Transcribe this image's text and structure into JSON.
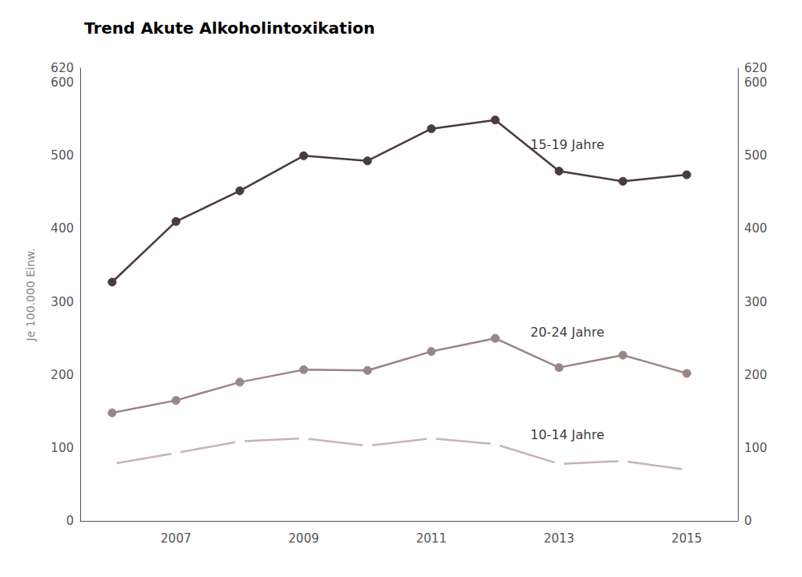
{
  "chart_data": {
    "type": "line",
    "title": "Trend Akute Alkoholintoxikation",
    "ylabel": "Je 100.000 Einw.",
    "x": [
      2006,
      2007,
      2008,
      2009,
      2010,
      2011,
      2012,
      2013,
      2014,
      2015
    ],
    "series": [
      {
        "color": "#4a3c3c",
        "marker": "circle",
        "values": [
          327,
          410,
          452,
          500,
          493,
          537,
          549,
          479,
          465,
          474
        ]
      },
      {
        "color": "#9b8585",
        "marker": "circle",
        "values": [
          148,
          165,
          190,
          207,
          206,
          232,
          250,
          210,
          227,
          202
        ]
      },
      {
        "color": "#c8b4b4",
        "marker": "emptyCircle",
        "values": [
          78,
          93,
          109,
          113,
          103,
          113,
          105,
          78,
          82,
          70
        ]
      }
    ],
    "annotations": [
      {
        "text": "15-19 Jahre",
        "x": 2012.55,
        "y": 515
      },
      {
        "text": "20-24 Jahre",
        "x": 2012.55,
        "y": 258
      },
      {
        "text": "10-14 Jahre",
        "x": 2012.55,
        "y": 118
      }
    ],
    "xlim": [
      2005.5,
      2015.8
    ],
    "xticks": [
      2007,
      2009,
      2011,
      2013,
      2015
    ],
    "ylim": [
      0,
      620
    ],
    "yticks": [
      0,
      100,
      200,
      300,
      400,
      500,
      600
    ],
    "y2lim": [
      0,
      620
    ],
    "y2ticks": [
      0,
      100,
      200,
      300,
      400,
      500,
      600
    ],
    "grid": false
  }
}
